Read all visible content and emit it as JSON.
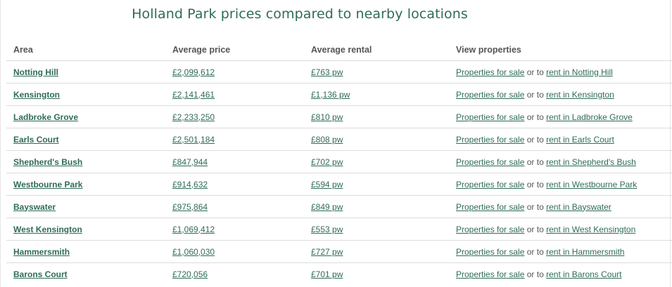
{
  "title": "Holland Park prices compared to nearby locations",
  "headers": {
    "area": "Area",
    "price": "Average price",
    "rental": "Average rental",
    "view": "View properties"
  },
  "connector": "or to",
  "rows": [
    {
      "area": "Notting Hill",
      "price": "£2,099,612",
      "rent": "£763 pw",
      "sale_link": "Properties for sale",
      "rent_link": "rent in Notting Hill"
    },
    {
      "area": "Kensington",
      "price": "£2,141,461",
      "rent": "£1,136 pw",
      "sale_link": "Properties for sale",
      "rent_link": "rent in Kensington"
    },
    {
      "area": "Ladbroke Grove",
      "price": "£2,233,250",
      "rent": "£810 pw",
      "sale_link": "Properties for sale",
      "rent_link": "rent in Ladbroke Grove"
    },
    {
      "area": "Earls Court",
      "price": "£2,501,184",
      "rent": "£808 pw",
      "sale_link": "Properties for sale",
      "rent_link": "rent in Earls Court"
    },
    {
      "area": "Shepherd's Bush",
      "price": "£847,944",
      "rent": "£702 pw",
      "sale_link": "Properties for sale",
      "rent_link": "rent in Shepherd's Bush"
    },
    {
      "area": "Westbourne Park",
      "price": "£914,632",
      "rent": "£594 pw",
      "sale_link": "Properties for sale",
      "rent_link": "rent in Westbourne Park"
    },
    {
      "area": "Bayswater",
      "price": "£975,864",
      "rent": "£849 pw",
      "sale_link": "Properties for sale",
      "rent_link": "rent in Bayswater"
    },
    {
      "area": "West Kensington",
      "price": "£1,069,412",
      "rent": "£553 pw",
      "sale_link": "Properties for sale",
      "rent_link": "rent in West Kensington"
    },
    {
      "area": "Hammersmith",
      "price": "£1,060,030",
      "rent": "£727 pw",
      "sale_link": "Properties for sale",
      "rent_link": "rent in Hammersmith"
    },
    {
      "area": "Barons Court",
      "price": "£720,056",
      "rent": "£701 pw",
      "sale_link": "Properties for sale",
      "rent_link": "rent in Barons Court"
    }
  ],
  "colors": {
    "link": "#2f6b5a",
    "text": "#555555",
    "divider": "#dcdcdc"
  }
}
